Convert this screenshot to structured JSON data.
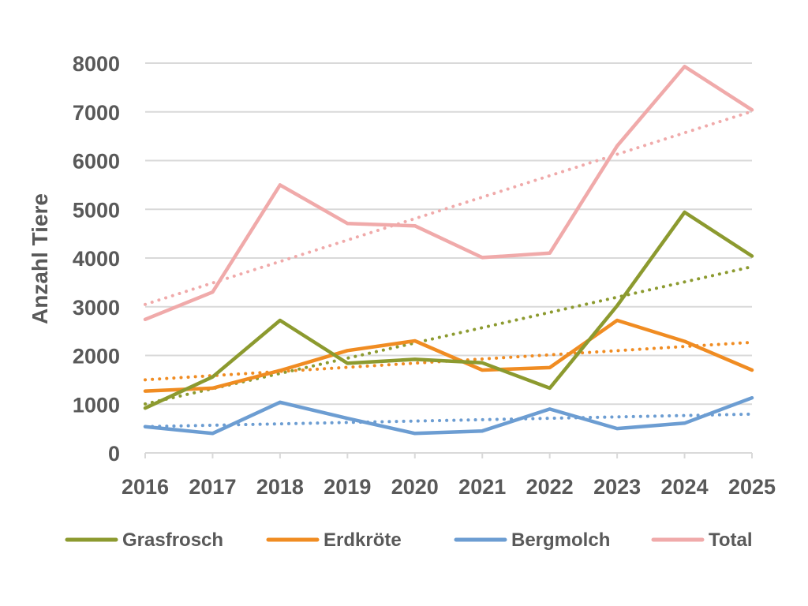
{
  "chart_data": {
    "type": "line",
    "title": "",
    "xlabel": "",
    "ylabel": "Anzahl Tiere",
    "categories": [
      "2016",
      "2017",
      "2018",
      "2019",
      "2020",
      "2021",
      "2022",
      "2023",
      "2024",
      "2025"
    ],
    "ylim": [
      0,
      8000
    ],
    "yticks": [
      "0",
      "1000",
      "2000",
      "3000",
      "4000",
      "5000",
      "6000",
      "7000",
      "8000"
    ],
    "grid": true,
    "legend_position": "bottom",
    "trendlines": "linear, dotted, one per series",
    "series": [
      {
        "name": "Grasfrosch",
        "color": "#8c9a2f",
        "values": [
          920,
          1560,
          2720,
          1840,
          1920,
          1850,
          1330,
          3020,
          4940,
          4040
        ]
      },
      {
        "name": "Erdkröte",
        "color": "#f08c22",
        "values": [
          1270,
          1330,
          1690,
          2100,
          2300,
          1700,
          1750,
          2720,
          2290,
          1700
        ]
      },
      {
        "name": "Bergmolch",
        "color": "#6c9dd2",
        "values": [
          540,
          400,
          1040,
          710,
          400,
          450,
          900,
          500,
          610,
          1130
        ]
      },
      {
        "name": "Total",
        "color": "#f0aaaa",
        "values": [
          2740,
          3300,
          5500,
          4710,
          4660,
          4010,
          4100,
          6300,
          7930,
          7040
        ]
      }
    ]
  }
}
